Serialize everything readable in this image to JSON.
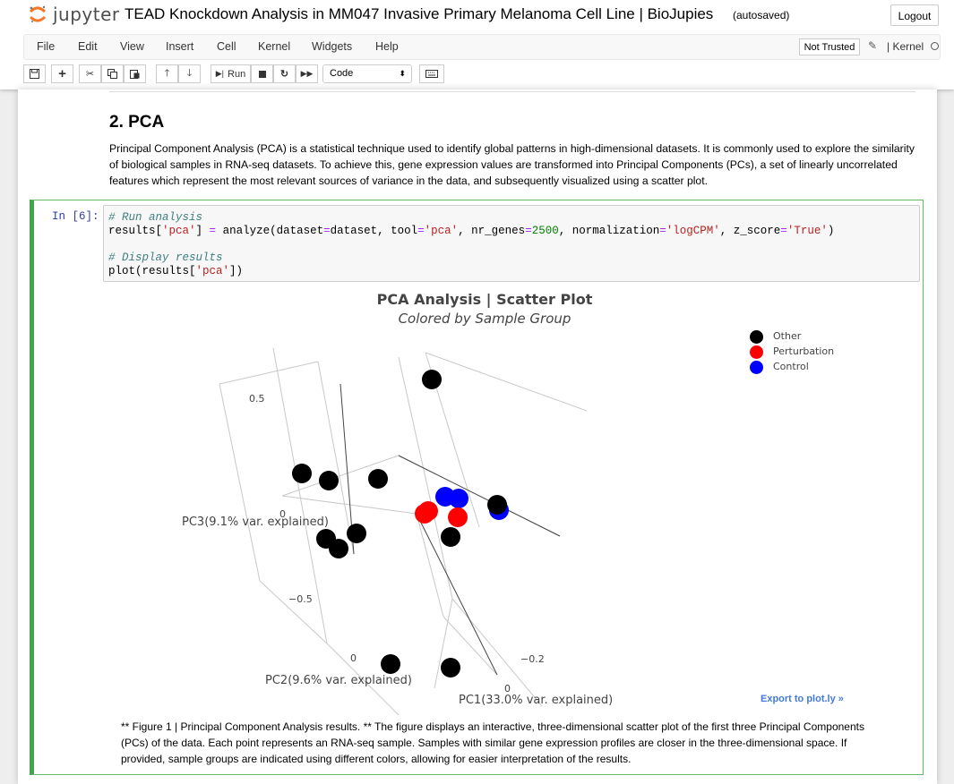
{
  "header": {
    "logo_text": "jupyter",
    "notebook_title": "TEAD Knockdown Analysis in MM047 Invasive Primary Melanoma Cell Line | BioJupies",
    "autosave_status": "(autosaved)",
    "logout_label": "Logout"
  },
  "menu": {
    "items": [
      "File",
      "Edit",
      "View",
      "Insert",
      "Cell",
      "Kernel",
      "Widgets",
      "Help"
    ],
    "trust_label": "Not Trusted",
    "kernel_label": "Kernel"
  },
  "toolbar": {
    "run_label": "Run",
    "cell_type": "Code",
    "icons": [
      "save-icon",
      "add-cell-icon",
      "cut-icon",
      "copy-icon",
      "paste-icon",
      "move-up-icon",
      "move-down-icon",
      "run-icon",
      "stop-icon",
      "restart-icon",
      "fast-forward-icon",
      "keyboard-icon"
    ]
  },
  "markdown": {
    "heading": "2. PCA",
    "paragraph": "Principal Component Analysis (PCA) is a statistical technique used to identify global patterns in high-dimensional datasets. It is commonly used to explore the similarity of biological samples in RNA-seq datasets. To achieve this, gene expression values are transformed into Principal Components (PCs), a set of linearly uncorrelated features which represent the most relevant sources of variance in the data, and subsequently visualized using a scatter plot."
  },
  "code_cell": {
    "prompt": "In [6]:",
    "comment1": "# Run analysis",
    "comment2": "# Display results",
    "dataset_var": "dataset",
    "tool_value": "'pca'",
    "nr_genes_value": "2500",
    "normalization_value": "'logCPM'",
    "z_score_value": "'True'",
    "results_key": "'pca'"
  },
  "plot": {
    "title": "PCA Analysis | Scatter Plot",
    "subtitle": "Colored by Sample Group",
    "export_link": "Export to plot.ly »",
    "legend": [
      {
        "label": "Other",
        "color": "#000000"
      },
      {
        "label": "Perturbation",
        "color": "#ff0000"
      },
      {
        "label": "Control",
        "color": "#0000ff"
      }
    ],
    "axis_labels": {
      "pc1": "PC1(33.0% var. explained)",
      "pc2": "PC2(9.6% var. explained)",
      "pc3": "PC3(9.1% var. explained)"
    },
    "tick_labels": {
      "pc3_pos": "0.5",
      "pc3_zero": "0",
      "pc3_neg": "−0.5",
      "pc2_zero": "0",
      "pc1_neg": "−0.2",
      "pc1_zero": "0"
    }
  },
  "chart_data": {
    "type": "scatter",
    "title": "PCA Analysis | Scatter Plot",
    "subtitle": "Colored by Sample Group",
    "dimensions": 3,
    "xlabel": "PC1(33.0% var. explained)",
    "ylabel": "PC2(9.6% var. explained)",
    "zlabel": "PC3(9.1% var. explained)",
    "legend_position": "top-right",
    "grid": true,
    "series": [
      {
        "name": "Other",
        "color": "#000000",
        "count": 13
      },
      {
        "name": "Perturbation",
        "color": "#ff0000",
        "count": 3
      },
      {
        "name": "Control",
        "color": "#0000ff",
        "count": 3
      }
    ]
  },
  "caption": "** Figure 1 | Principal Component Analysis results. ** The figure displays an interactive, three-dimensional scatter plot of the first three Principal Components (PCs) of the data. Each point represents an RNA-seq sample. Samples with similar gene expression profiles are closer in the three-dimensional space. If provided, sample groups are indicated using different colors, allowing for easier interpretation of the results."
}
